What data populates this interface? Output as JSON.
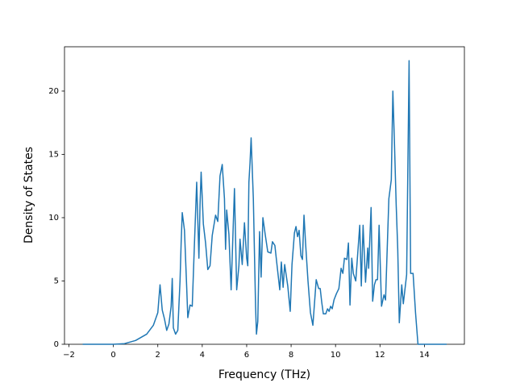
{
  "chart_data": {
    "type": "line",
    "xlabel": "Frequency (THz)",
    "ylabel": "Density of States",
    "color": "#1f77b4",
    "xlim": [
      -2.2,
      15.8
    ],
    "ylim": [
      0,
      23.5
    ],
    "xticks": [
      {
        "value": -2,
        "label": "−2"
      },
      0,
      2,
      4,
      6,
      8,
      10,
      12,
      14
    ],
    "yticks": [
      0,
      5,
      10,
      15,
      20
    ],
    "x": [
      -1.38,
      0,
      0.5,
      1.0,
      1.5,
      1.8,
      2.0,
      2.1,
      2.2,
      2.3,
      2.4,
      2.5,
      2.6,
      2.65,
      2.7,
      2.8,
      2.9,
      3.0,
      3.05,
      3.1,
      3.2,
      3.3,
      3.35,
      3.45,
      3.55,
      3.65,
      3.75,
      3.85,
      3.9,
      3.95,
      4.05,
      4.15,
      4.25,
      4.35,
      4.45,
      4.6,
      4.7,
      4.8,
      4.9,
      5.0,
      5.05,
      5.1,
      5.2,
      5.3,
      5.45,
      5.55,
      5.65,
      5.7,
      5.8,
      5.9,
      6.0,
      6.05,
      6.1,
      6.15,
      6.2,
      6.3,
      6.4,
      6.44,
      6.5,
      6.58,
      6.65,
      6.73,
      6.84,
      6.95,
      7.09,
      7.16,
      7.27,
      7.35,
      7.49,
      7.56,
      7.64,
      7.71,
      7.85,
      7.96,
      8.04,
      8.15,
      8.22,
      8.29,
      8.36,
      8.44,
      8.51,
      8.58,
      8.65,
      8.76,
      8.87,
      8.98,
      9.13,
      9.24,
      9.31,
      9.38,
      9.45,
      9.56,
      9.64,
      9.71,
      9.78,
      9.85,
      9.93,
      10.04,
      10.15,
      10.25,
      10.33,
      10.4,
      10.51,
      10.58,
      10.65,
      10.73,
      10.8,
      10.91,
      11.09,
      11.16,
      11.24,
      11.35,
      11.45,
      11.49,
      11.6,
      11.67,
      11.75,
      11.82,
      11.89,
      11.96,
      12.07,
      12.18,
      12.25,
      12.4,
      12.51,
      12.58,
      12.65,
      12.73,
      12.8,
      12.87,
      12.98,
      13.05,
      13.2,
      13.31,
      13.38,
      13.49,
      13.6,
      13.71,
      15.0
    ],
    "values": [
      0,
      0,
      0.05,
      0.3,
      0.8,
      1.5,
      2.5,
      4.7,
      2.7,
      2.0,
      1.1,
      1.6,
      3.0,
      5.2,
      1.3,
      0.8,
      1.1,
      5.0,
      8.0,
      10.4,
      9.0,
      4.5,
      2.1,
      3.1,
      3.0,
      8.0,
      12.8,
      6.8,
      11.0,
      13.6,
      9.5,
      8.0,
      5.9,
      6.2,
      8.6,
      10.2,
      9.7,
      13.3,
      14.2,
      11.5,
      7.5,
      10.6,
      8.7,
      4.3,
      12.3,
      4.3,
      6.2,
      8.3,
      6.3,
      9.6,
      6.8,
      6.2,
      12.8,
      14.3,
      16.3,
      11.5,
      3.0,
      0.8,
      1.8,
      8.9,
      5.3,
      10.0,
      8.6,
      7.3,
      7.2,
      8.1,
      7.8,
      6.5,
      4.3,
      6.5,
      4.5,
      6.3,
      4.6,
      2.6,
      6.3,
      8.8,
      9.3,
      8.5,
      9.0,
      7.0,
      6.7,
      10.2,
      8.0,
      5.0,
      2.5,
      1.5,
      5.1,
      4.4,
      4.4,
      3.3,
      2.4,
      2.4,
      2.8,
      2.6,
      3.0,
      2.8,
      3.5,
      4.0,
      4.4,
      6.0,
      5.6,
      6.8,
      6.7,
      8.0,
      3.1,
      6.8,
      5.6,
      5.0,
      9.4,
      4.6,
      9.4,
      4.9,
      7.6,
      6.0,
      10.8,
      3.4,
      4.7,
      5.1,
      5.1,
      9.4,
      3.0,
      3.9,
      3.5,
      11.5,
      13.0,
      20.0,
      16.0,
      11.0,
      7.5,
      1.7,
      4.7,
      3.2,
      5.5,
      22.4,
      5.6,
      5.6,
      2.5,
      0,
      0
    ]
  }
}
